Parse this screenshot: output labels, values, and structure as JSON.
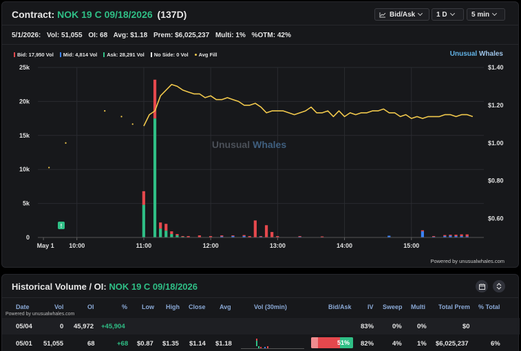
{
  "contract": {
    "prefix": "Contract:",
    "name": "NOK 19 C 09/18/2026",
    "dte": "(137D)",
    "controls": {
      "bid_ask": "Bid/Ask",
      "range": "1 D",
      "interval": "5 min"
    }
  },
  "stats": {
    "date": "5/1/2026:",
    "vol": "Vol: 51,055",
    "oi": "OI: 68",
    "avg": "Avg: $1.18",
    "prem": "Prem: $6,025,237",
    "multi": "Multi: 1%",
    "otm": "%OTM: 42%"
  },
  "legend": [
    {
      "label": "Bid: 17,950 Vol",
      "color": "#e5484d"
    },
    {
      "label": "Mid: 4,814 Vol",
      "color": "#3b82f6"
    },
    {
      "label": "Ask: 28,291 Vol",
      "color": "#2fbf86"
    },
    {
      "label": "No Side: 0 Vol",
      "color": "#e6e6e6"
    },
    {
      "label": "Avg Fill",
      "color": "#f2c94c"
    }
  ],
  "brand": {
    "part1": "Unusual",
    "part2": "Whales"
  },
  "watermark": {
    "part1": "Unusual",
    "part2": "Whales"
  },
  "powered_by": "Powered by unusualwhales.com",
  "chart_data": {
    "type": "bar+line",
    "x_tick_labels": [
      "May 1",
      "10:00",
      "11:00",
      "12:00",
      "13:00",
      "14:00",
      "15:00"
    ],
    "y_left_ticks": [
      "25k",
      "20k",
      "15k",
      "10k",
      "5k",
      "0"
    ],
    "y_left_range": [
      0,
      25000
    ],
    "y_right_ticks": [
      "$1.40",
      "$1.20",
      "$1.00",
      "$0.80",
      "$0.60"
    ],
    "y_right_range": [
      0.5,
      1.4
    ],
    "grid": true,
    "marker_label": "!",
    "volume_bars": [
      {
        "t": "11:00",
        "ask": 4800,
        "mid": 0,
        "bid": 2000
      },
      {
        "t": "11:10",
        "ask": 17500,
        "mid": 0,
        "bid": 5700
      },
      {
        "t": "11:15",
        "ask": 1300,
        "mid": 0,
        "bid": 900
      },
      {
        "t": "11:20",
        "ask": 1000,
        "mid": 0,
        "bid": 1000
      },
      {
        "t": "11:25",
        "ask": 500,
        "mid": 0,
        "bid": 400
      },
      {
        "t": "11:30",
        "ask": 300,
        "mid": 0,
        "bid": 200
      },
      {
        "t": "11:35",
        "ask": 100,
        "mid": 0,
        "bid": 100
      },
      {
        "t": "11:40",
        "ask": 50,
        "mid": 0,
        "bid": 150
      },
      {
        "t": "11:50",
        "ask": 0,
        "mid": 0,
        "bid": 300
      },
      {
        "t": "12:00",
        "ask": 0,
        "mid": 0,
        "bid": 200
      },
      {
        "t": "12:10",
        "ask": 0,
        "mid": 150,
        "bid": 150
      },
      {
        "t": "12:20",
        "ask": 0,
        "mid": 200,
        "bid": 100
      },
      {
        "t": "12:30",
        "ask": 0,
        "mid": 200,
        "bid": 150
      },
      {
        "t": "12:35",
        "ask": 0,
        "mid": 0,
        "bid": 200
      },
      {
        "t": "12:40",
        "ask": 0,
        "mid": 0,
        "bid": 2500
      },
      {
        "t": "12:45",
        "ask": 0,
        "mid": 100,
        "bid": 100
      },
      {
        "t": "12:50",
        "ask": 0,
        "mid": 0,
        "bid": 1800
      },
      {
        "t": "12:55",
        "ask": 0,
        "mid": 0,
        "bid": 800
      },
      {
        "t": "13:00",
        "ask": 0,
        "mid": 0,
        "bid": 200
      },
      {
        "t": "13:20",
        "ask": 0,
        "mid": 100,
        "bid": 100
      },
      {
        "t": "13:40",
        "ask": 0,
        "mid": 0,
        "bid": 150
      },
      {
        "t": "14:40",
        "ask": 0,
        "mid": 250,
        "bid": 0
      },
      {
        "t": "15:10",
        "ask": 0,
        "mid": 900,
        "bid": 150
      },
      {
        "t": "15:20",
        "ask": 0,
        "mid": 100,
        "bid": 100
      },
      {
        "t": "15:30",
        "ask": 0,
        "mid": 200,
        "bid": 150
      },
      {
        "t": "15:35",
        "ask": 0,
        "mid": 250,
        "bid": 150
      },
      {
        "t": "15:40",
        "ask": 0,
        "mid": 200,
        "bid": 200
      },
      {
        "t": "15:45",
        "ask": 0,
        "mid": 200,
        "bid": 250
      },
      {
        "t": "15:50",
        "ask": 0,
        "mid": 150,
        "bid": 300
      }
    ],
    "avg_fill_dots": [
      {
        "t": "09:35",
        "price": 0.87
      },
      {
        "t": "09:50",
        "price": 1.0
      },
      {
        "t": "10:25",
        "price": 1.17
      },
      {
        "t": "10:40",
        "price": 1.14
      },
      {
        "t": "10:50",
        "price": 1.1
      }
    ],
    "avg_fill_line": [
      {
        "t": "11:00",
        "price": 1.09
      },
      {
        "t": "11:05",
        "price": 1.15
      },
      {
        "t": "11:10",
        "price": 1.17
      },
      {
        "t": "11:15",
        "price": 1.25
      },
      {
        "t": "11:20",
        "price": 1.28
      },
      {
        "t": "11:25",
        "price": 1.31
      },
      {
        "t": "11:30",
        "price": 1.3
      },
      {
        "t": "11:35",
        "price": 1.28
      },
      {
        "t": "11:40",
        "price": 1.27
      },
      {
        "t": "11:45",
        "price": 1.26
      },
      {
        "t": "11:50",
        "price": 1.26
      },
      {
        "t": "11:55",
        "price": 1.24
      },
      {
        "t": "12:00",
        "price": 1.25
      },
      {
        "t": "12:05",
        "price": 1.23
      },
      {
        "t": "12:10",
        "price": 1.23
      },
      {
        "t": "12:15",
        "price": 1.24
      },
      {
        "t": "12:20",
        "price": 1.23
      },
      {
        "t": "12:25",
        "price": 1.22
      },
      {
        "t": "12:30",
        "price": 1.2
      },
      {
        "t": "12:35",
        "price": 1.2
      },
      {
        "t": "12:40",
        "price": 1.21
      },
      {
        "t": "12:45",
        "price": 1.19
      },
      {
        "t": "12:50",
        "price": 1.16
      },
      {
        "t": "12:55",
        "price": 1.17
      },
      {
        "t": "13:00",
        "price": 1.17
      },
      {
        "t": "13:05",
        "price": 1.17
      },
      {
        "t": "13:10",
        "price": 1.16
      },
      {
        "t": "13:15",
        "price": 1.15
      },
      {
        "t": "13:20",
        "price": 1.16
      },
      {
        "t": "13:25",
        "price": 1.17
      },
      {
        "t": "13:30",
        "price": 1.19
      },
      {
        "t": "13:35",
        "price": 1.16
      },
      {
        "t": "13:40",
        "price": 1.16
      },
      {
        "t": "13:45",
        "price": 1.17
      },
      {
        "t": "13:50",
        "price": 1.14
      },
      {
        "t": "13:55",
        "price": 1.17
      },
      {
        "t": "14:00",
        "price": 1.14
      },
      {
        "t": "14:05",
        "price": 1.16
      },
      {
        "t": "14:10",
        "price": 1.15
      },
      {
        "t": "14:15",
        "price": 1.16
      },
      {
        "t": "14:20",
        "price": 1.16
      },
      {
        "t": "14:25",
        "price": 1.17
      },
      {
        "t": "14:30",
        "price": 1.17
      },
      {
        "t": "14:35",
        "price": 1.18
      },
      {
        "t": "14:40",
        "price": 1.16
      },
      {
        "t": "14:45",
        "price": 1.16
      },
      {
        "t": "14:50",
        "price": 1.14
      },
      {
        "t": "14:55",
        "price": 1.15
      },
      {
        "t": "15:00",
        "price": 1.13
      },
      {
        "t": "15:05",
        "price": 1.14
      },
      {
        "t": "15:10",
        "price": 1.13
      },
      {
        "t": "15:15",
        "price": 1.14
      },
      {
        "t": "15:20",
        "price": 1.14
      },
      {
        "t": "15:25",
        "price": 1.14
      },
      {
        "t": "15:30",
        "price": 1.15
      },
      {
        "t": "15:35",
        "price": 1.15
      },
      {
        "t": "15:40",
        "price": 1.14
      },
      {
        "t": "15:45",
        "price": 1.15
      },
      {
        "t": "15:50",
        "price": 1.15
      },
      {
        "t": "15:55",
        "price": 1.14
      }
    ]
  },
  "historical": {
    "title_prefix": "Historical Volume / OI:",
    "title_contract": "NOK 19 C 09/18/2026",
    "powered_by": "Powered by unusualwhales.com",
    "columns": [
      "Date",
      "Vol",
      "OI",
      "%",
      "Low",
      "High",
      "Close",
      "Avg",
      "Vol (30min)",
      "Bid/Ask",
      "IV",
      "Sweep",
      "Multi",
      "Total Prem",
      "% Total"
    ],
    "rows": [
      {
        "date": "05/04",
        "vol": "0",
        "oi": "45,972",
        "pct": "+45,904",
        "low": "",
        "high": "",
        "close": "",
        "avg": "",
        "bidask": "",
        "ask_fraction": null,
        "iv": "83%",
        "sweep": "0%",
        "multi": "0%",
        "prem": "$0",
        "pct_total": ""
      },
      {
        "date": "05/01",
        "vol": "51,055",
        "oi": "68",
        "pct": "+68",
        "low": "$0.87",
        "high": "$1.35",
        "close": "$1.14",
        "avg": "$1.18",
        "bidask": "51%",
        "ask_fraction": 0.51,
        "iv": "82%",
        "sweep": "4%",
        "multi": "1%",
        "prem": "$6,025,237",
        "pct_total": "6%"
      }
    ]
  }
}
